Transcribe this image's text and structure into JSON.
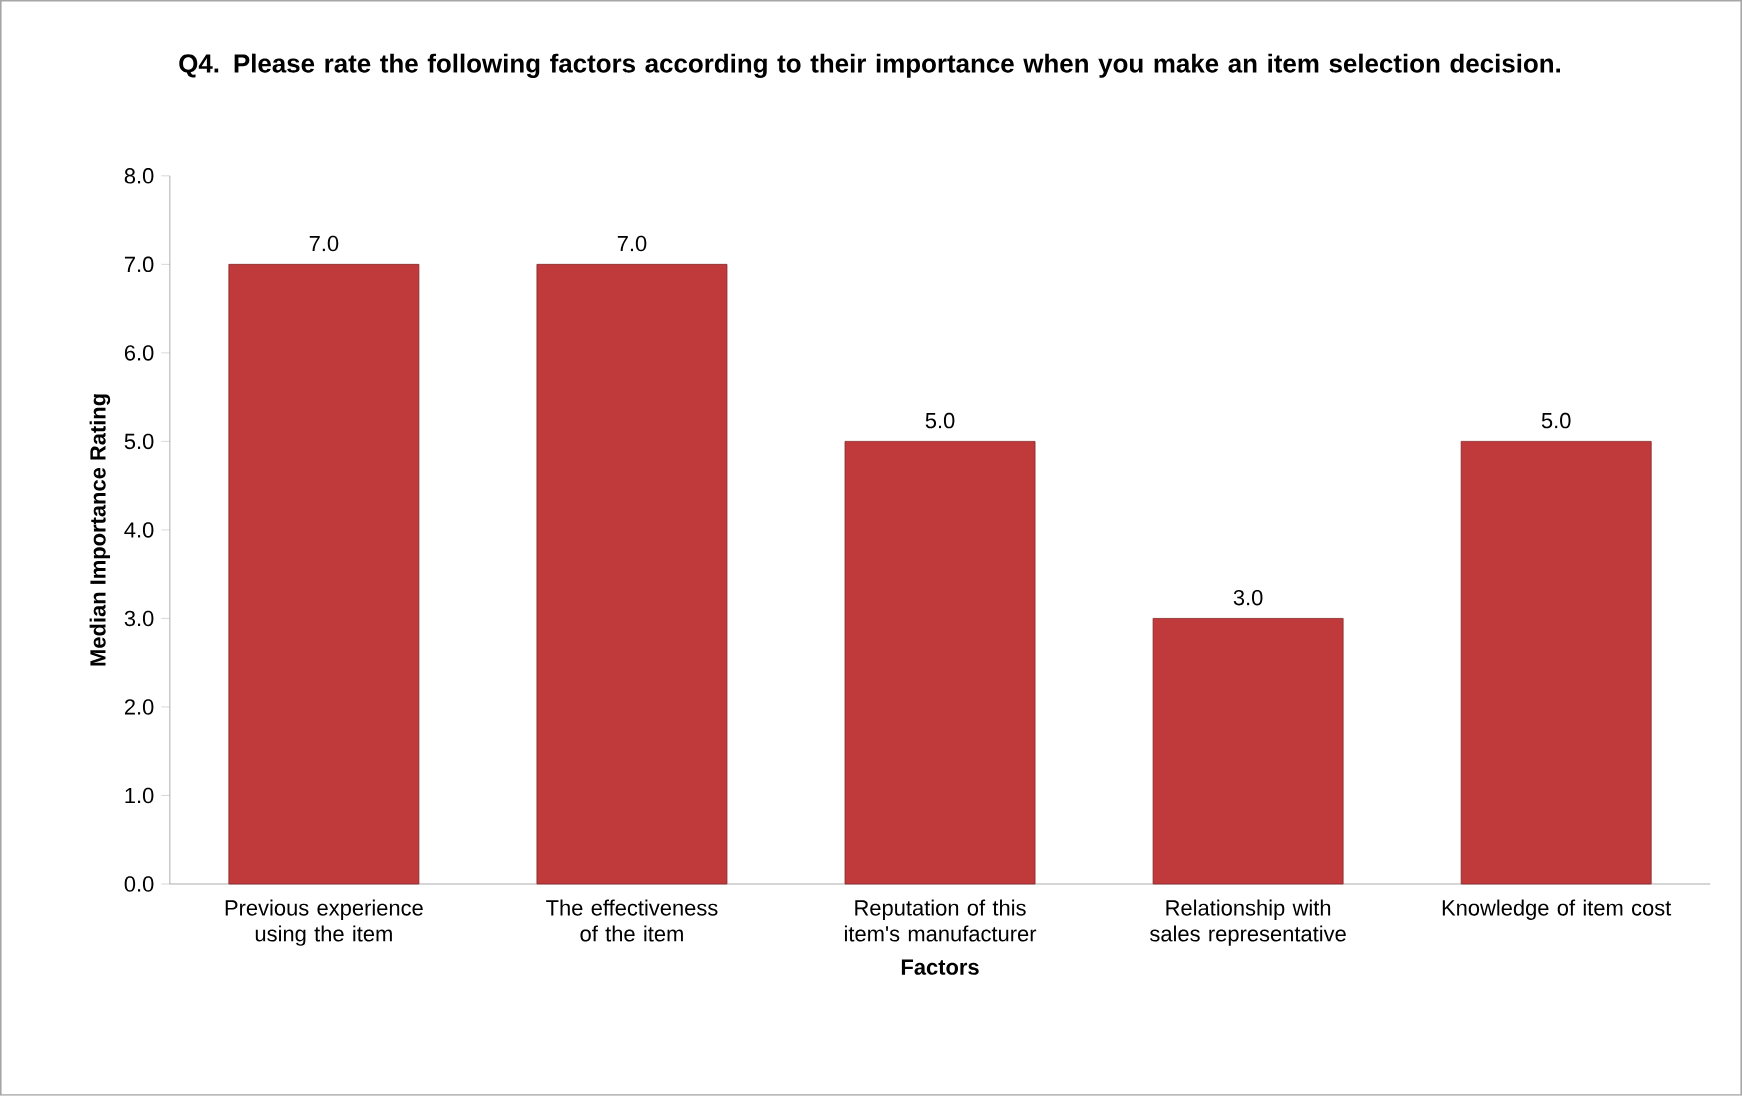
{
  "chart_data": {
    "type": "bar",
    "title": "Q4. Please rate the following factors according to their importance when you make an item selection decision.",
    "xlabel": "Factors",
    "ylabel": "Median Importance Rating",
    "categories": [
      "Previous experience using the item",
      "The effectiveness of the item",
      "Reputation of this item's manufacturer",
      "Relationship with sales representative",
      "Knowledge of item cost"
    ],
    "values": [
      7,
      7,
      5,
      3,
      5
    ],
    "value_labels": [
      "7.0",
      "7.0",
      "5.0",
      "3.0",
      "5.0"
    ],
    "color": "#c0393b",
    "ylim": [
      0,
      8
    ],
    "yticks": [
      {
        "value": 0,
        "label": "0.0"
      },
      {
        "value": 1,
        "label": "1.0"
      },
      {
        "value": 2,
        "label": "2.0"
      },
      {
        "value": 3,
        "label": "3.0"
      },
      {
        "value": 4,
        "label": "4.0"
      },
      {
        "value": 5,
        "label": "5.0"
      },
      {
        "value": 6,
        "label": "6.0"
      },
      {
        "value": 7,
        "label": "7.0"
      },
      {
        "value": 8,
        "label": "8.0"
      }
    ],
    "grid": false
  }
}
